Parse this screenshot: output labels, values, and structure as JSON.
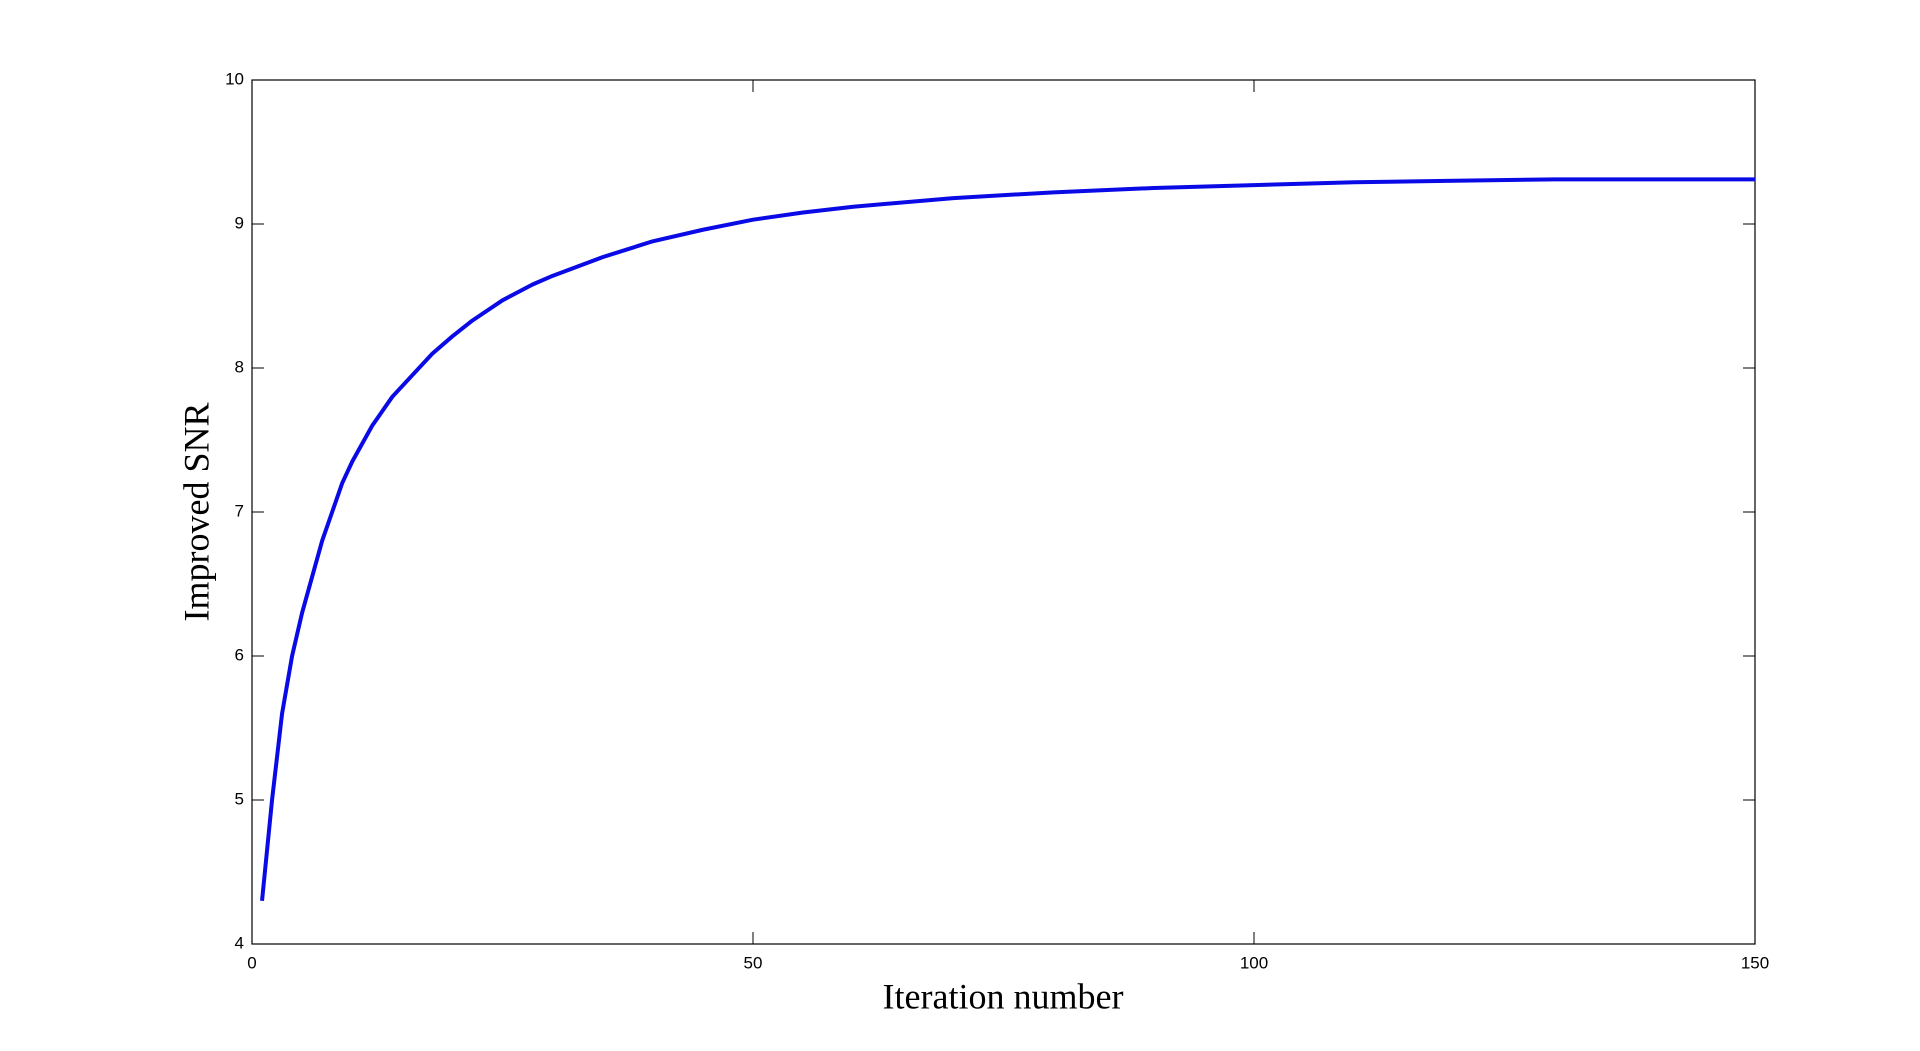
{
  "chart_data": {
    "type": "line",
    "x_label": "Iteration number",
    "y_label": "Improved SNR",
    "x": [
      1,
      2,
      3,
      4,
      5,
      6,
      7,
      8,
      9,
      10,
      12,
      14,
      16,
      18,
      20,
      22,
      25,
      28,
      30,
      35,
      40,
      45,
      50,
      55,
      60,
      70,
      80,
      90,
      100,
      110,
      120,
      130,
      140,
      150
    ],
    "series": [
      {
        "color": "#0a0ae6",
        "values": [
          4.3,
          5.0,
          5.6,
          6.0,
          6.3,
          6.55,
          6.8,
          7.0,
          7.2,
          7.35,
          7.6,
          7.8,
          7.95,
          8.1,
          8.22,
          8.33,
          8.47,
          8.58,
          8.64,
          8.77,
          8.88,
          8.96,
          9.03,
          9.08,
          9.12,
          9.18,
          9.22,
          9.25,
          9.27,
          9.29,
          9.3,
          9.31,
          9.31,
          9.31
        ]
      }
    ],
    "xlim": [
      0,
      150
    ],
    "xticks": [
      0,
      50,
      100,
      150
    ],
    "ylim": [
      4,
      10
    ],
    "yticks": [
      4,
      5,
      6,
      7,
      8,
      9,
      10
    ]
  }
}
